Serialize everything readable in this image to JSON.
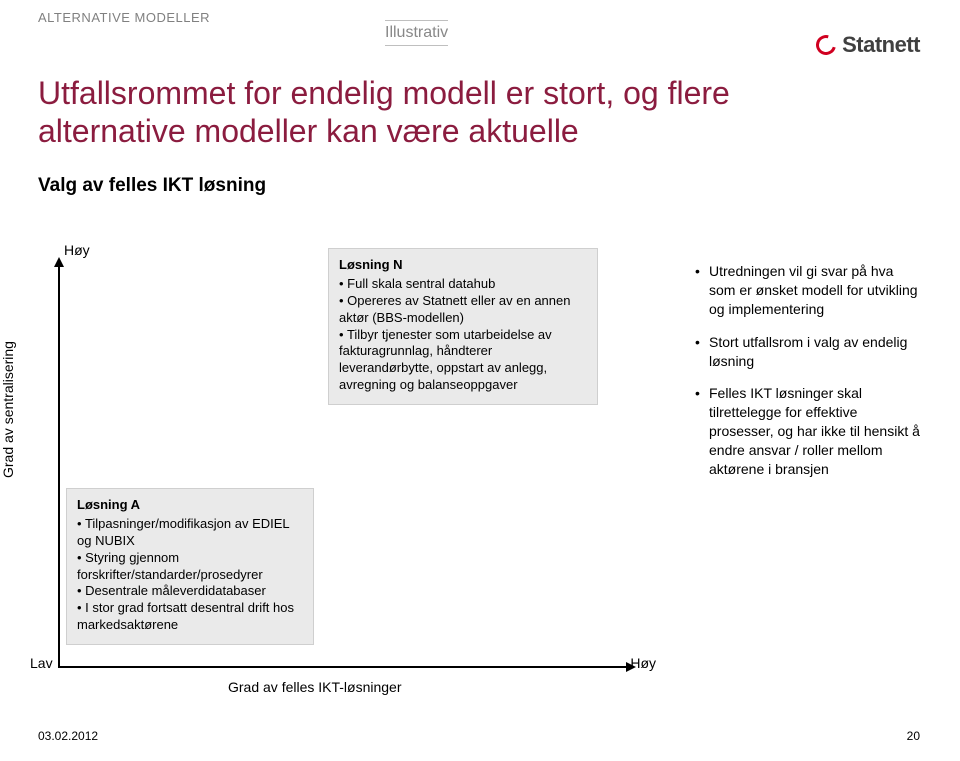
{
  "header": {
    "kicker": "ALTERNATIVE MODELLER",
    "illustrative": "Illustrativ",
    "logo_text": "Statnett"
  },
  "title": "Utfallsrommet for endelig modell er stort, og flere alternative modeller kan være aktuelle",
  "subtitle": "Valg av felles IKT løsning",
  "chart": {
    "y_axis_label": "Grad av sentralisering",
    "y_high": "Høy",
    "y_low": "Lav",
    "x_axis_label": "Grad av felles IKT-løsninger",
    "x_high": "Høy",
    "box_a": {
      "title": "Løsning A",
      "items": [
        "Tilpasninger/modifikasjon av EDIEL og NUBIX",
        "Styring gjennom forskrifter/standarder/prosedyrer",
        "Desentrale måleverdidatabaser",
        "I stor grad fortsatt desentral drift hos markedsaktørene"
      ]
    },
    "box_n": {
      "title": "Løsning N",
      "items": [
        "Full skala sentral datahub",
        "Opereres av Statnett eller av en annen aktør (BBS-modellen)",
        "Tilbyr tjenester som utarbeidelse av fakturagrunnlag, håndterer leverandørbytte, oppstart av anlegg, avregning og balanseoppgaver"
      ]
    },
    "colors": {
      "box_bg": "#eaeaea",
      "box_border": "#cfcfcf",
      "axis": "#000000",
      "title_color": "#8b1c3f"
    }
  },
  "right_notes": [
    "Utredningen vil gi svar på hva som er ønsket modell for utvikling og implementering",
    "Stort utfallsrom i valg av endelig løsning",
    "Felles IKT løsninger skal tilrettelegge for effektive prosesser, og har ikke til hensikt å endre ansvar / roller mellom aktørene i bransjen"
  ],
  "footer": {
    "date": "03.02.2012",
    "page": "20"
  }
}
